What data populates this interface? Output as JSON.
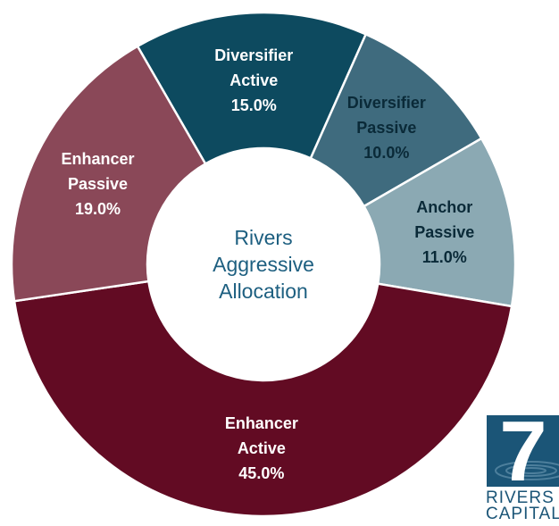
{
  "chart_data": {
    "type": "donut",
    "title": "Rivers Aggressive Allocation",
    "categories": [
      "Diversifier Active",
      "Diversifier Passive",
      "Anchor Passive",
      "Enhancer Active",
      "Enhancer Passive"
    ],
    "values": [
      15,
      10,
      11,
      45,
      19
    ],
    "value_labels": [
      "15.0%",
      "10.0%",
      "11.0%",
      "45.0%",
      "19.0%"
    ],
    "colors": [
      "#0d4a5f",
      "#3f6b7e",
      "#8ba9b3",
      "#620b23",
      "#8a4858"
    ],
    "label_colors": [
      "#ffffff",
      "#0a2a38",
      "#0a2a38",
      "#ffffff",
      "#ffffff"
    ]
  },
  "logo": {
    "number": "7",
    "line1": "RIVERS",
    "line2": "CAPITAL"
  }
}
